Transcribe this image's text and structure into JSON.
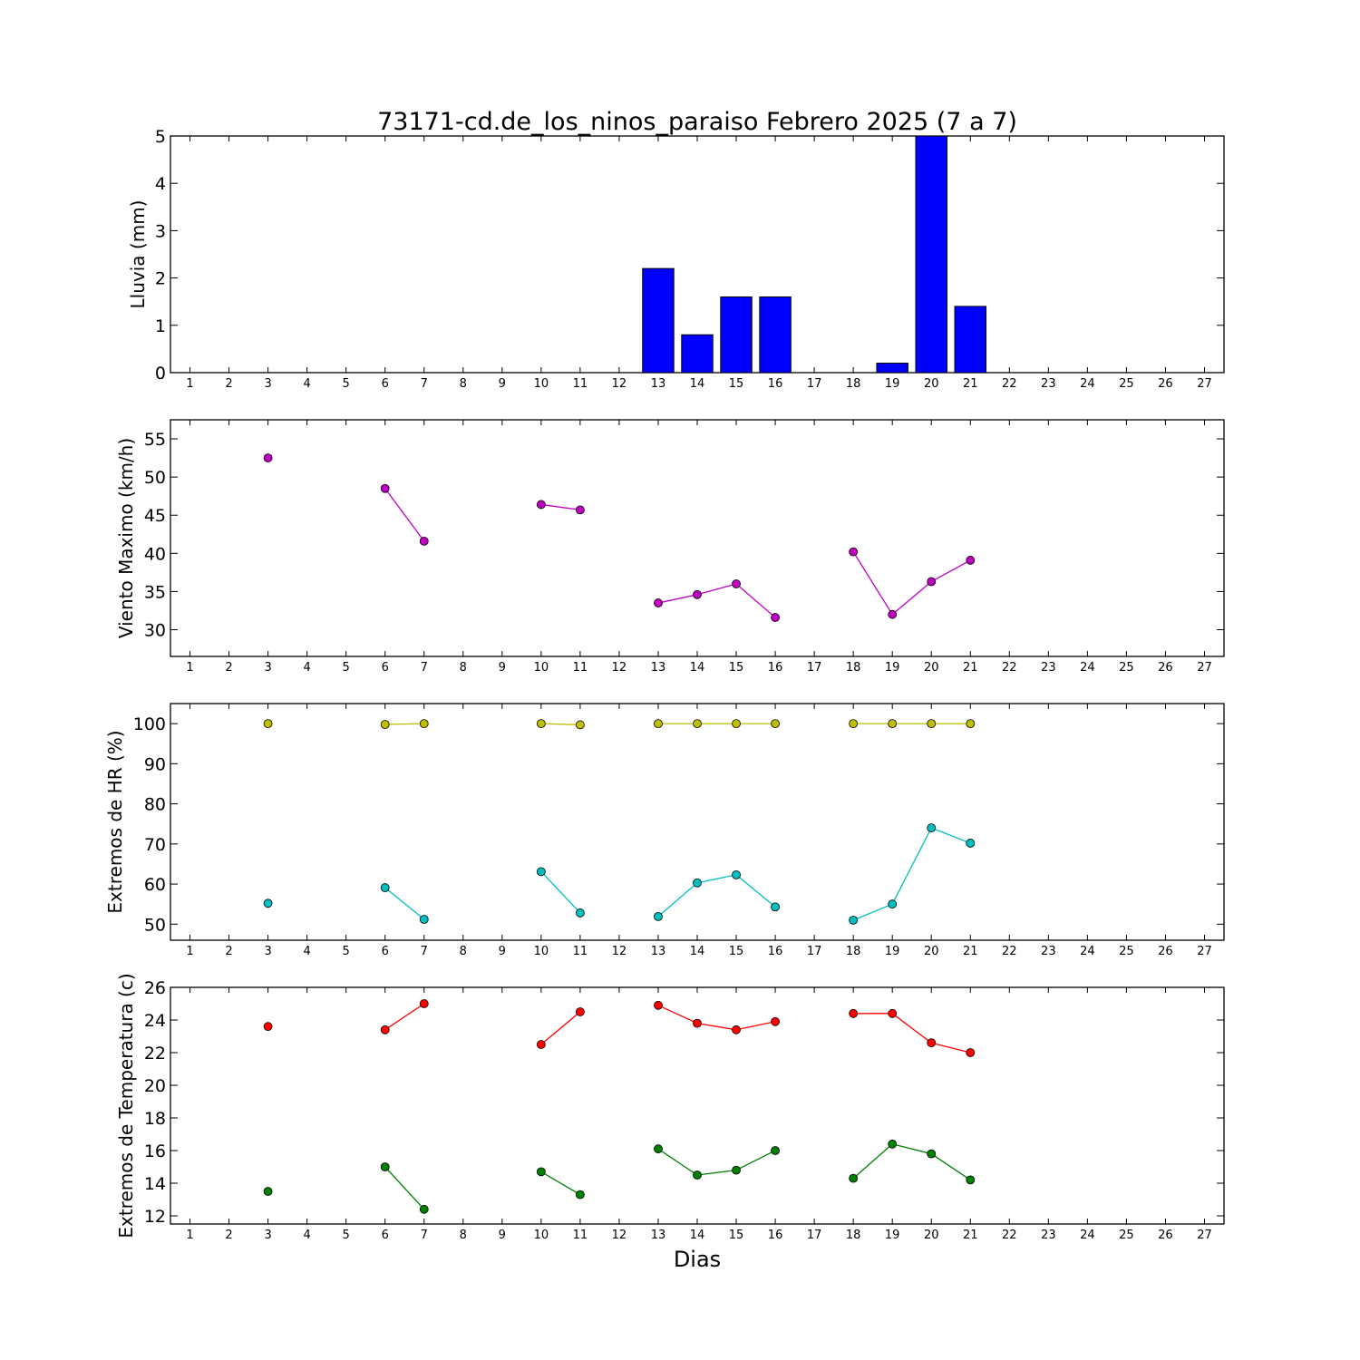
{
  "title": "73171-cd.de_los_ninos_paraiso Febrero 2025  (7 a 7)",
  "xlabel": "Dias",
  "chart_data": [
    {
      "type": "bar",
      "ylabel": "Lluvia (mm)",
      "xlim": [
        0.5,
        27.5
      ],
      "ylim": [
        0,
        5
      ],
      "yticks": [
        0,
        1,
        2,
        3,
        4,
        5
      ],
      "xticks": [
        1,
        2,
        3,
        4,
        5,
        6,
        7,
        8,
        9,
        10,
        11,
        12,
        13,
        14,
        15,
        16,
        17,
        18,
        19,
        20,
        21,
        22,
        23,
        24,
        25,
        26,
        27
      ],
      "color": "#0000ff",
      "x": [
        3,
        4,
        5,
        6,
        7,
        10,
        11,
        13,
        14,
        15,
        16,
        18,
        19,
        20,
        21
      ],
      "values": [
        0,
        0,
        0,
        0,
        0,
        0,
        0,
        2.2,
        0.8,
        1.6,
        1.6,
        0,
        0.2,
        5.0,
        1.4
      ]
    },
    {
      "type": "line",
      "ylabel": "Viento Maximo (km/h)",
      "xlim": [
        0.5,
        27.5
      ],
      "ylim": [
        26.5,
        57.5
      ],
      "yticks": [
        30,
        35,
        40,
        45,
        50,
        55
      ],
      "xticks": [
        1,
        2,
        3,
        4,
        5,
        6,
        7,
        8,
        9,
        10,
        11,
        12,
        13,
        14,
        15,
        16,
        17,
        18,
        19,
        20,
        21,
        22,
        23,
        24,
        25,
        26,
        27
      ],
      "series": [
        {
          "color": "#c000c0",
          "points": [
            [
              3,
              52.5
            ],
            [
              6,
              48.5
            ],
            [
              7,
              41.6
            ],
            [
              10,
              46.4
            ],
            [
              11,
              45.7
            ],
            [
              13,
              33.5
            ],
            [
              14,
              34.6
            ],
            [
              15,
              36.0
            ],
            [
              16,
              31.6
            ],
            [
              18,
              40.2
            ],
            [
              19,
              32.0
            ],
            [
              20,
              36.3
            ],
            [
              21,
              39.1
            ]
          ]
        }
      ]
    },
    {
      "type": "line",
      "ylabel": "Extremos de HR (%)",
      "xlim": [
        0.5,
        27.5
      ],
      "ylim": [
        46,
        105
      ],
      "yticks": [
        50,
        60,
        70,
        80,
        90,
        100
      ],
      "xticks": [
        1,
        2,
        3,
        4,
        5,
        6,
        7,
        8,
        9,
        10,
        11,
        12,
        13,
        14,
        15,
        16,
        17,
        18,
        19,
        20,
        21,
        22,
        23,
        24,
        25,
        26,
        27
      ],
      "series": [
        {
          "color": "#bfbf00",
          "points": [
            [
              3,
              100
            ],
            [
              6,
              99.8
            ],
            [
              7,
              100
            ],
            [
              10,
              100
            ],
            [
              11,
              99.7
            ],
            [
              13,
              100
            ],
            [
              14,
              100
            ],
            [
              15,
              100
            ],
            [
              16,
              100
            ],
            [
              18,
              100
            ],
            [
              19,
              100
            ],
            [
              20,
              100
            ],
            [
              21,
              100
            ]
          ]
        },
        {
          "color": "#00bfbf",
          "points": [
            [
              3,
              55.2
            ],
            [
              6,
              59.1
            ],
            [
              7,
              51.2
            ],
            [
              10,
              63.1
            ],
            [
              11,
              52.8
            ],
            [
              13,
              51.9
            ],
            [
              14,
              60.3
            ],
            [
              15,
              62.3
            ],
            [
              16,
              54.3
            ],
            [
              18,
              51.0
            ],
            [
              19,
              55.0
            ],
            [
              20,
              74.0
            ],
            [
              21,
              70.2
            ]
          ]
        }
      ]
    },
    {
      "type": "line",
      "ylabel": "Extremos de Temperatura (c)",
      "xlim": [
        0.5,
        27.5
      ],
      "ylim": [
        11.5,
        26
      ],
      "yticks": [
        12,
        14,
        16,
        18,
        20,
        22,
        24,
        26
      ],
      "xticks": [
        1,
        2,
        3,
        4,
        5,
        6,
        7,
        8,
        9,
        10,
        11,
        12,
        13,
        14,
        15,
        16,
        17,
        18,
        19,
        20,
        21,
        22,
        23,
        24,
        25,
        26,
        27
      ],
      "series": [
        {
          "color": "#ff0000",
          "points": [
            [
              3,
              23.6
            ],
            [
              6,
              23.4
            ],
            [
              7,
              25.0
            ],
            [
              10,
              22.5
            ],
            [
              11,
              24.5
            ],
            [
              13,
              24.9
            ],
            [
              14,
              23.8
            ],
            [
              15,
              23.4
            ],
            [
              16,
              23.9
            ],
            [
              18,
              24.4
            ],
            [
              19,
              24.4
            ],
            [
              20,
              22.6
            ],
            [
              21,
              22.0
            ]
          ]
        },
        {
          "color": "#008000",
          "points": [
            [
              3,
              13.5
            ],
            [
              6,
              15.0
            ],
            [
              7,
              12.4
            ],
            [
              10,
              14.7
            ],
            [
              11,
              13.3
            ],
            [
              13,
              16.1
            ],
            [
              14,
              14.5
            ],
            [
              15,
              14.8
            ],
            [
              16,
              16.0
            ],
            [
              18,
              14.3
            ],
            [
              19,
              16.4
            ],
            [
              20,
              15.8
            ],
            [
              21,
              14.2
            ]
          ]
        }
      ]
    }
  ]
}
